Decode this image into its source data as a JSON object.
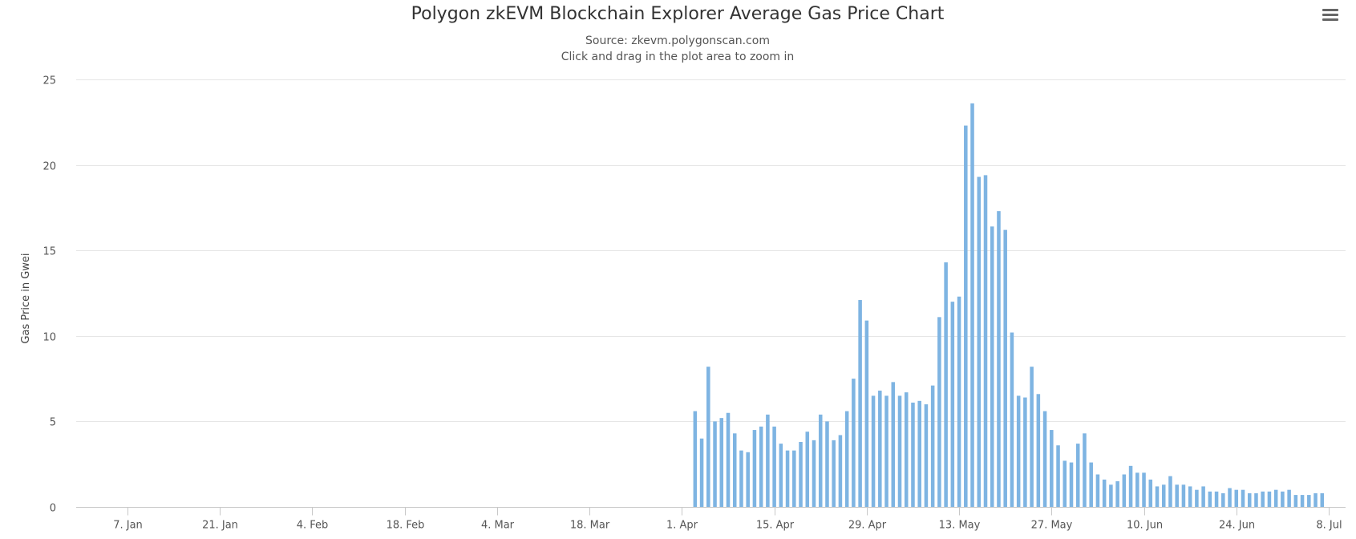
{
  "menu": {
    "icon": "hamburger-menu-icon"
  },
  "chart_data": {
    "type": "bar",
    "title": "Polygon zkEVM Blockchain Explorer Average Gas Price Chart",
    "subtitle_lines": [
      "Source: zkevm.polygonscan.com",
      "Click and drag in the plot area to zoom in"
    ],
    "ylabel": "Gas Price in Gwei",
    "xlabel": "",
    "ylim": [
      0,
      25
    ],
    "x_range": [
      "2023-01-01",
      "2023-07-08"
    ],
    "yticks": [
      0,
      5,
      10,
      15,
      20,
      25
    ],
    "xticks": [
      {
        "date": "2023-01-07",
        "label": "7. Jan"
      },
      {
        "date": "2023-01-21",
        "label": "21. Jan"
      },
      {
        "date": "2023-02-04",
        "label": "4. Feb"
      },
      {
        "date": "2023-02-18",
        "label": "18. Feb"
      },
      {
        "date": "2023-03-04",
        "label": "4. Mar"
      },
      {
        "date": "2023-03-18",
        "label": "18. Mar"
      },
      {
        "date": "2023-04-01",
        "label": "1. Apr"
      },
      {
        "date": "2023-04-15",
        "label": "15. Apr"
      },
      {
        "date": "2023-04-29",
        "label": "29. Apr"
      },
      {
        "date": "2023-05-13",
        "label": "13. May"
      },
      {
        "date": "2023-05-27",
        "label": "27. May"
      },
      {
        "date": "2023-06-10",
        "label": "10. Jun"
      },
      {
        "date": "2023-06-24",
        "label": "24. Jun"
      },
      {
        "date": "2023-07-08",
        "label": "8. Jul"
      }
    ],
    "grid": true,
    "legend": "none",
    "color": "#7eb4e2",
    "series": [
      {
        "x": [
          "2023-04-03",
          "2023-04-04",
          "2023-04-05",
          "2023-04-06",
          "2023-04-07",
          "2023-04-08",
          "2023-04-09",
          "2023-04-10",
          "2023-04-11",
          "2023-04-12",
          "2023-04-13",
          "2023-04-14",
          "2023-04-15",
          "2023-04-16",
          "2023-04-17",
          "2023-04-18",
          "2023-04-19",
          "2023-04-20",
          "2023-04-21",
          "2023-04-22",
          "2023-04-23",
          "2023-04-24",
          "2023-04-25",
          "2023-04-26",
          "2023-04-27",
          "2023-04-28",
          "2023-04-29",
          "2023-04-30",
          "2023-05-01",
          "2023-05-02",
          "2023-05-03",
          "2023-05-04",
          "2023-05-05",
          "2023-05-06",
          "2023-05-07",
          "2023-05-08",
          "2023-05-09",
          "2023-05-10",
          "2023-05-11",
          "2023-05-12",
          "2023-05-13",
          "2023-05-14",
          "2023-05-15",
          "2023-05-16",
          "2023-05-17",
          "2023-05-18",
          "2023-05-19",
          "2023-05-20",
          "2023-05-21",
          "2023-05-22",
          "2023-05-23",
          "2023-05-24",
          "2023-05-25",
          "2023-05-26",
          "2023-05-27",
          "2023-05-28",
          "2023-05-29",
          "2023-05-30",
          "2023-05-31",
          "2023-06-01",
          "2023-06-02",
          "2023-06-03",
          "2023-06-04",
          "2023-06-05",
          "2023-06-06",
          "2023-06-07",
          "2023-06-08",
          "2023-06-09",
          "2023-06-10",
          "2023-06-11",
          "2023-06-12",
          "2023-06-13",
          "2023-06-14",
          "2023-06-15",
          "2023-06-16",
          "2023-06-17",
          "2023-06-18",
          "2023-06-19",
          "2023-06-20",
          "2023-06-21",
          "2023-06-22",
          "2023-06-23",
          "2023-06-24",
          "2023-06-25",
          "2023-06-26",
          "2023-06-27",
          "2023-06-28",
          "2023-06-29",
          "2023-06-30",
          "2023-07-01",
          "2023-07-02",
          "2023-07-03",
          "2023-07-04",
          "2023-07-05",
          "2023-07-06",
          "2023-07-07"
        ],
        "values": [
          5.6,
          4.0,
          8.2,
          5.0,
          5.2,
          5.5,
          4.3,
          3.3,
          3.2,
          4.5,
          4.7,
          5.4,
          4.7,
          3.7,
          3.3,
          3.3,
          3.8,
          4.4,
          3.9,
          5.4,
          5.0,
          3.9,
          4.2,
          5.6,
          7.5,
          12.1,
          10.9,
          6.5,
          6.8,
          6.5,
          7.3,
          6.5,
          6.7,
          6.1,
          6.2,
          6.0,
          7.1,
          11.1,
          14.3,
          12.0,
          12.3,
          22.3,
          23.6,
          19.3,
          19.4,
          16.4,
          17.3,
          16.2,
          10.2,
          6.5,
          6.4,
          8.2,
          6.6,
          5.6,
          4.5,
          3.6,
          2.7,
          2.6,
          3.7,
          4.3,
          2.6,
          1.9,
          1.6,
          1.3,
          1.5,
          1.9,
          2.4,
          2.0,
          2.0,
          1.6,
          1.2,
          1.3,
          1.8,
          1.3,
          1.3,
          1.2,
          1.0,
          1.2,
          0.9,
          0.9,
          0.8,
          1.1,
          1.0,
          1.0,
          0.8,
          0.8,
          0.9,
          0.9,
          1.0,
          0.9,
          1.0,
          0.7,
          0.7,
          0.7,
          0.8,
          0.8
        ]
      }
    ]
  }
}
